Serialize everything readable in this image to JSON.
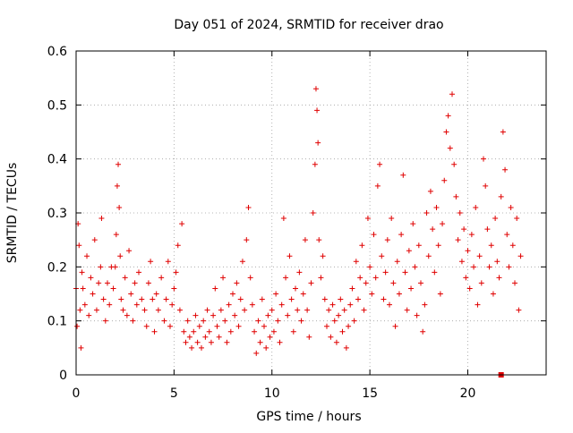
{
  "chart_data": {
    "type": "scatter",
    "title": "Day 051 of 2024, SRMTID for receiver drao",
    "xlabel": "GPS time / hours",
    "ylabel": "SRMTID / TECUs",
    "xlim": [
      0,
      24
    ],
    "ylim": [
      0,
      0.6
    ],
    "xticks": [
      0,
      5,
      10,
      15,
      20
    ],
    "xtick_labels": [
      "0",
      "5",
      "10",
      "15",
      "20"
    ],
    "yticks": [
      0,
      0.1,
      0.2,
      0.3,
      0.4,
      0.5,
      0.6
    ],
    "ytick_labels": [
      "0",
      "0.1",
      "0.2",
      "0.3",
      "0.4",
      "0.5",
      "0.6"
    ],
    "grid": true,
    "marker": "plus",
    "series": [
      {
        "name": "SRMTID",
        "color": "#e00000",
        "points": [
          [
            0.0,
            0.16
          ],
          [
            0.05,
            0.09
          ],
          [
            0.1,
            0.28
          ],
          [
            0.15,
            0.24
          ],
          [
            0.2,
            0.12
          ],
          [
            0.25,
            0.05
          ],
          [
            0.3,
            0.19
          ],
          [
            0.35,
            0.16
          ],
          [
            0.45,
            0.13
          ],
          [
            0.55,
            0.22
          ],
          [
            0.65,
            0.11
          ],
          [
            0.75,
            0.18
          ],
          [
            0.85,
            0.15
          ],
          [
            0.95,
            0.25
          ],
          [
            1.05,
            0.12
          ],
          [
            1.15,
            0.17
          ],
          [
            1.25,
            0.2
          ],
          [
            1.3,
            0.29
          ],
          [
            1.4,
            0.14
          ],
          [
            1.5,
            0.1
          ],
          [
            1.6,
            0.17
          ],
          [
            1.7,
            0.13
          ],
          [
            1.8,
            0.2
          ],
          [
            1.9,
            0.16
          ],
          [
            2.0,
            0.2
          ],
          [
            2.05,
            0.26
          ],
          [
            2.1,
            0.35
          ],
          [
            2.15,
            0.39
          ],
          [
            2.2,
            0.31
          ],
          [
            2.25,
            0.22
          ],
          [
            2.3,
            0.14
          ],
          [
            2.4,
            0.12
          ],
          [
            2.5,
            0.18
          ],
          [
            2.6,
            0.11
          ],
          [
            2.7,
            0.23
          ],
          [
            2.8,
            0.15
          ],
          [
            2.9,
            0.1
          ],
          [
            3.0,
            0.17
          ],
          [
            3.1,
            0.13
          ],
          [
            3.2,
            0.19
          ],
          [
            3.35,
            0.14
          ],
          [
            3.5,
            0.12
          ],
          [
            3.6,
            0.09
          ],
          [
            3.7,
            0.17
          ],
          [
            3.8,
            0.21
          ],
          [
            3.9,
            0.14
          ],
          [
            4.0,
            0.08
          ],
          [
            4.1,
            0.15
          ],
          [
            4.2,
            0.12
          ],
          [
            4.35,
            0.18
          ],
          [
            4.5,
            0.1
          ],
          [
            4.6,
            0.14
          ],
          [
            4.7,
            0.21
          ],
          [
            4.8,
            0.09
          ],
          [
            4.9,
            0.13
          ],
          [
            5.0,
            0.16
          ],
          [
            5.1,
            0.19
          ],
          [
            5.2,
            0.24
          ],
          [
            5.3,
            0.12
          ],
          [
            5.4,
            0.28
          ],
          [
            5.5,
            0.08
          ],
          [
            5.6,
            0.06
          ],
          [
            5.7,
            0.1
          ],
          [
            5.8,
            0.07
          ],
          [
            5.9,
            0.05
          ],
          [
            6.0,
            0.08
          ],
          [
            6.1,
            0.11
          ],
          [
            6.2,
            0.06
          ],
          [
            6.3,
            0.09
          ],
          [
            6.4,
            0.05
          ],
          [
            6.5,
            0.1
          ],
          [
            6.6,
            0.07
          ],
          [
            6.7,
            0.12
          ],
          [
            6.8,
            0.08
          ],
          [
            6.9,
            0.06
          ],
          [
            7.0,
            0.11
          ],
          [
            7.1,
            0.16
          ],
          [
            7.2,
            0.09
          ],
          [
            7.3,
            0.07
          ],
          [
            7.4,
            0.12
          ],
          [
            7.5,
            0.18
          ],
          [
            7.6,
            0.1
          ],
          [
            7.7,
            0.06
          ],
          [
            7.8,
            0.13
          ],
          [
            7.9,
            0.08
          ],
          [
            8.0,
            0.15
          ],
          [
            8.1,
            0.11
          ],
          [
            8.2,
            0.17
          ],
          [
            8.3,
            0.09
          ],
          [
            8.4,
            0.14
          ],
          [
            8.5,
            0.21
          ],
          [
            8.6,
            0.12
          ],
          [
            8.7,
            0.25
          ],
          [
            8.8,
            0.31
          ],
          [
            8.9,
            0.18
          ],
          [
            9.0,
            0.13
          ],
          [
            9.1,
            0.08
          ],
          [
            9.2,
            0.04
          ],
          [
            9.3,
            0.1
          ],
          [
            9.4,
            0.06
          ],
          [
            9.5,
            0.14
          ],
          [
            9.6,
            0.09
          ],
          [
            9.7,
            0.05
          ],
          [
            9.8,
            0.11
          ],
          [
            9.9,
            0.07
          ],
          [
            10.0,
            0.12
          ],
          [
            10.1,
            0.08
          ],
          [
            10.2,
            0.15
          ],
          [
            10.3,
            0.1
          ],
          [
            10.4,
            0.06
          ],
          [
            10.5,
            0.13
          ],
          [
            10.6,
            0.29
          ],
          [
            10.7,
            0.18
          ],
          [
            10.8,
            0.11
          ],
          [
            10.9,
            0.22
          ],
          [
            11.0,
            0.14
          ],
          [
            11.1,
            0.08
          ],
          [
            11.2,
            0.16
          ],
          [
            11.3,
            0.12
          ],
          [
            11.4,
            0.19
          ],
          [
            11.5,
            0.1
          ],
          [
            11.6,
            0.15
          ],
          [
            11.7,
            0.25
          ],
          [
            11.8,
            0.12
          ],
          [
            11.9,
            0.07
          ],
          [
            12.0,
            0.17
          ],
          [
            12.1,
            0.3
          ],
          [
            12.2,
            0.39
          ],
          [
            12.25,
            0.53
          ],
          [
            12.3,
            0.49
          ],
          [
            12.35,
            0.43
          ],
          [
            12.4,
            0.25
          ],
          [
            12.5,
            0.18
          ],
          [
            12.6,
            0.22
          ],
          [
            12.7,
            0.14
          ],
          [
            12.8,
            0.09
          ],
          [
            12.9,
            0.12
          ],
          [
            13.0,
            0.07
          ],
          [
            13.1,
            0.13
          ],
          [
            13.2,
            0.1
          ],
          [
            13.3,
            0.06
          ],
          [
            13.4,
            0.11
          ],
          [
            13.5,
            0.14
          ],
          [
            13.6,
            0.08
          ],
          [
            13.7,
            0.12
          ],
          [
            13.8,
            0.05
          ],
          [
            13.9,
            0.09
          ],
          [
            14.0,
            0.13
          ],
          [
            14.1,
            0.16
          ],
          [
            14.2,
            0.1
          ],
          [
            14.3,
            0.21
          ],
          [
            14.4,
            0.14
          ],
          [
            14.5,
            0.18
          ],
          [
            14.6,
            0.24
          ],
          [
            14.7,
            0.12
          ],
          [
            14.8,
            0.17
          ],
          [
            14.9,
            0.29
          ],
          [
            15.0,
            0.2
          ],
          [
            15.1,
            0.15
          ],
          [
            15.2,
            0.26
          ],
          [
            15.3,
            0.18
          ],
          [
            15.4,
            0.35
          ],
          [
            15.5,
            0.39
          ],
          [
            15.6,
            0.22
          ],
          [
            15.7,
            0.14
          ],
          [
            15.8,
            0.19
          ],
          [
            15.9,
            0.25
          ],
          [
            16.0,
            0.13
          ],
          [
            16.1,
            0.29
          ],
          [
            16.2,
            0.17
          ],
          [
            16.3,
            0.09
          ],
          [
            16.4,
            0.21
          ],
          [
            16.5,
            0.15
          ],
          [
            16.6,
            0.26
          ],
          [
            16.7,
            0.37
          ],
          [
            16.8,
            0.19
          ],
          [
            16.9,
            0.12
          ],
          [
            17.0,
            0.23
          ],
          [
            17.1,
            0.16
          ],
          [
            17.2,
            0.28
          ],
          [
            17.3,
            0.2
          ],
          [
            17.4,
            0.11
          ],
          [
            17.5,
            0.24
          ],
          [
            17.6,
            0.17
          ],
          [
            17.7,
            0.08
          ],
          [
            17.8,
            0.13
          ],
          [
            17.9,
            0.3
          ],
          [
            18.0,
            0.22
          ],
          [
            18.1,
            0.34
          ],
          [
            18.2,
            0.27
          ],
          [
            18.3,
            0.19
          ],
          [
            18.4,
            0.31
          ],
          [
            18.5,
            0.24
          ],
          [
            18.6,
            0.15
          ],
          [
            18.7,
            0.28
          ],
          [
            18.8,
            0.36
          ],
          [
            18.9,
            0.45
          ],
          [
            19.0,
            0.48
          ],
          [
            19.1,
            0.42
          ],
          [
            19.2,
            0.52
          ],
          [
            19.3,
            0.39
          ],
          [
            19.4,
            0.33
          ],
          [
            19.5,
            0.25
          ],
          [
            19.6,
            0.3
          ],
          [
            19.7,
            0.21
          ],
          [
            19.8,
            0.27
          ],
          [
            19.9,
            0.18
          ],
          [
            20.0,
            0.23
          ],
          [
            20.1,
            0.16
          ],
          [
            20.2,
            0.26
          ],
          [
            20.3,
            0.2
          ],
          [
            20.4,
            0.31
          ],
          [
            20.5,
            0.13
          ],
          [
            20.6,
            0.22
          ],
          [
            20.7,
            0.17
          ],
          [
            20.8,
            0.4
          ],
          [
            20.9,
            0.35
          ],
          [
            21.0,
            0.27
          ],
          [
            21.1,
            0.2
          ],
          [
            21.2,
            0.24
          ],
          [
            21.3,
            0.15
          ],
          [
            21.4,
            0.29
          ],
          [
            21.5,
            0.21
          ],
          [
            21.6,
            0.18
          ],
          [
            21.7,
            0.33
          ],
          [
            21.8,
            0.45
          ],
          [
            21.9,
            0.38
          ],
          [
            22.0,
            0.26
          ],
          [
            22.1,
            0.2
          ],
          [
            22.2,
            0.31
          ],
          [
            22.3,
            0.24
          ],
          [
            22.4,
            0.17
          ],
          [
            22.5,
            0.29
          ],
          [
            22.6,
            0.12
          ],
          [
            22.7,
            0.22
          ]
        ]
      }
    ],
    "outlier_marker": [
      21.7,
      0.0
    ]
  }
}
